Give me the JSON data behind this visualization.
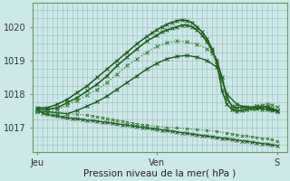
{
  "background_color": "#cce8e8",
  "plot_bg": "#cce8e8",
  "grid_color_major": "#99bbbb",
  "grid_color_minor": "#bbdddd",
  "line_color1": "#1a5c1a",
  "line_color2": "#2d7a2d",
  "xlabel": "Pression niveau de la mer( hPa )",
  "xtick_labels": [
    "Jeu",
    "",
    "Ven",
    "",
    "S"
  ],
  "xtick_positions": [
    0,
    24,
    48,
    72,
    96
  ],
  "ylim": [
    1016.3,
    1020.7
  ],
  "yticks": [
    1017,
    1018,
    1019,
    1020
  ],
  "xlim": [
    -2,
    100
  ],
  "series": [
    {
      "x": [
        0,
        2,
        4,
        6,
        8,
        10,
        12,
        14,
        16,
        18,
        20,
        22,
        24,
        26,
        28,
        30,
        32,
        34,
        36,
        38,
        40,
        42,
        44,
        46,
        48,
        50,
        52,
        54,
        56,
        58,
        60,
        62,
        64,
        66,
        68,
        70,
        72,
        74,
        76,
        78,
        80,
        82,
        84,
        86,
        88,
        90,
        92,
        94,
        96
      ],
      "y": [
        1017.5,
        1017.45,
        1017.4,
        1017.38,
        1017.35,
        1017.32,
        1017.3,
        1017.28,
        1017.27,
        1017.25,
        1017.23,
        1017.22,
        1017.2,
        1017.18,
        1017.16,
        1017.14,
        1017.12,
        1017.1,
        1017.08,
        1017.06,
        1017.04,
        1017.02,
        1017.0,
        1016.98,
        1016.96,
        1016.94,
        1016.92,
        1016.9,
        1016.88,
        1016.86,
        1016.84,
        1016.82,
        1016.8,
        1016.78,
        1016.76,
        1016.74,
        1016.72,
        1016.7,
        1016.68,
        1016.66,
        1016.64,
        1016.62,
        1016.6,
        1016.58,
        1016.56,
        1016.54,
        1016.52,
        1016.5,
        1016.48
      ],
      "style": "solid",
      "marker": "x",
      "color": "#1a5c1a",
      "lw": 0.9,
      "ms": 2.5
    },
    {
      "x": [
        0,
        4,
        8,
        12,
        16,
        20,
        24,
        28,
        32,
        36,
        40,
        44,
        48,
        52,
        56,
        60,
        64,
        68,
        72,
        76,
        80,
        84,
        88,
        92,
        96
      ],
      "y": [
        1017.5,
        1017.48,
        1017.45,
        1017.42,
        1017.52,
        1017.65,
        1017.78,
        1017.95,
        1018.15,
        1018.35,
        1018.55,
        1018.75,
        1018.92,
        1019.05,
        1019.12,
        1019.15,
        1019.1,
        1019.0,
        1018.8,
        1018.0,
        1017.7,
        1017.6,
        1017.65,
        1017.62,
        1017.5
      ],
      "style": "solid",
      "marker": "x",
      "color": "#1a5c1a",
      "lw": 1.0,
      "ms": 2.5
    },
    {
      "x": [
        0,
        4,
        8,
        12,
        16,
        20,
        24,
        28,
        32,
        36,
        40,
        44,
        48,
        50,
        52,
        54,
        56,
        58,
        60,
        62,
        64,
        66,
        68,
        70,
        72,
        74,
        76,
        78,
        80,
        82,
        84,
        86,
        88,
        90,
        92,
        94,
        96
      ],
      "y": [
        1017.55,
        1017.55,
        1017.6,
        1017.75,
        1017.9,
        1018.1,
        1018.3,
        1018.55,
        1018.85,
        1019.1,
        1019.35,
        1019.58,
        1019.75,
        1019.85,
        1019.9,
        1019.95,
        1020.0,
        1020.05,
        1020.05,
        1020.0,
        1019.9,
        1019.75,
        1019.55,
        1019.3,
        1019.0,
        1018.5,
        1017.9,
        1017.65,
        1017.6,
        1017.62,
        1017.63,
        1017.6,
        1017.58,
        1017.56,
        1017.55,
        1017.52,
        1017.5
      ],
      "style": "solid",
      "marker": "x",
      "color": "#1a5c1a",
      "lw": 1.1,
      "ms": 2.5
    },
    {
      "x": [
        0,
        4,
        8,
        12,
        16,
        20,
        24,
        28,
        32,
        36,
        40,
        44,
        46,
        48,
        50,
        52,
        54,
        56,
        58,
        60,
        62,
        64,
        66,
        68,
        70,
        72,
        74,
        76,
        78,
        80,
        82,
        84,
        86,
        88,
        90,
        92,
        94,
        96
      ],
      "y": [
        1017.6,
        1017.6,
        1017.7,
        1017.85,
        1018.05,
        1018.25,
        1018.5,
        1018.75,
        1019.0,
        1019.25,
        1019.5,
        1019.72,
        1019.82,
        1019.92,
        1020.0,
        1020.08,
        1020.13,
        1020.18,
        1020.2,
        1020.18,
        1020.12,
        1020.0,
        1019.85,
        1019.65,
        1019.35,
        1018.9,
        1018.1,
        1017.7,
        1017.55,
        1017.5,
        1017.52,
        1017.55,
        1017.57,
        1017.6,
        1017.62,
        1017.62,
        1017.58,
        1017.52
      ],
      "style": "solid",
      "marker": "x",
      "color": "#1a5c1a",
      "lw": 1.1,
      "ms": 2.5
    },
    {
      "x": [
        0,
        4,
        8,
        12,
        16,
        20,
        24,
        28,
        32,
        36,
        40,
        44,
        48,
        52,
        56,
        60,
        64,
        68,
        70,
        72,
        74,
        76,
        78,
        80,
        82,
        84,
        86,
        88,
        90,
        92,
        94,
        96
      ],
      "y": [
        1017.5,
        1017.48,
        1017.55,
        1017.68,
        1017.82,
        1017.98,
        1018.15,
        1018.35,
        1018.6,
        1018.85,
        1019.05,
        1019.25,
        1019.42,
        1019.52,
        1019.58,
        1019.55,
        1019.48,
        1019.35,
        1019.22,
        1018.9,
        1018.4,
        1017.85,
        1017.62,
        1017.55,
        1017.55,
        1017.57,
        1017.6,
        1017.65,
        1017.68,
        1017.7,
        1017.68,
        1017.62
      ],
      "style": "dotted",
      "marker": "x",
      "color": "#2d7a2d",
      "lw": 0.9,
      "ms": 2.5
    },
    {
      "x": [
        0,
        4,
        8,
        12,
        16,
        20,
        22,
        24,
        26,
        28,
        30,
        32,
        34,
        36,
        38,
        40,
        42,
        44,
        48,
        52,
        56,
        60,
        64,
        68,
        72,
        76,
        78,
        80,
        82,
        84,
        86,
        88,
        90,
        92,
        94,
        96
      ],
      "y": [
        1017.5,
        1017.48,
        1017.45,
        1017.42,
        1017.4,
        1017.38,
        1017.36,
        1017.34,
        1017.3,
        1017.28,
        1017.25,
        1017.22,
        1017.2,
        1017.18,
        1017.15,
        1017.12,
        1017.1,
        1017.08,
        1017.05,
        1017.02,
        1017.0,
        1016.98,
        1016.95,
        1016.93,
        1016.9,
        1016.85,
        1016.83,
        1016.8,
        1016.78,
        1016.76,
        1016.74,
        1016.72,
        1016.7,
        1016.68,
        1016.65,
        1016.6
      ],
      "style": "dotted",
      "marker": "x",
      "color": "#2d7a2d",
      "lw": 0.8,
      "ms": 2.0
    }
  ]
}
